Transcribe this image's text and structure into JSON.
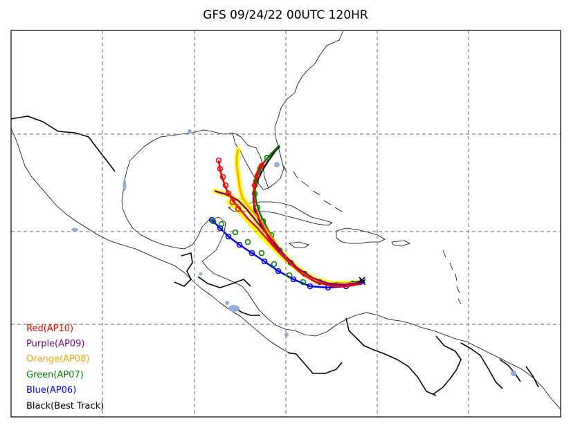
{
  "title": "GFS 09/24/22 00UTC 120HR",
  "colors": {
    "land_outline": "#000000",
    "lake": "#8fb0dc",
    "grid": "#808080",
    "halo": "#ffff00"
  },
  "legend": [
    {
      "label": "Red(AP10)",
      "color": "#ff0000"
    },
    {
      "label": "Purple(AP09)",
      "color": "#800080"
    },
    {
      "label": "Orange(AP08)",
      "color": "#ffa500"
    },
    {
      "label": "Green(AP07)",
      "color": "#008000"
    },
    {
      "label": "Blue(AP06)",
      "color": "#0000ff"
    },
    {
      "label": "Black(Best Track)",
      "color": "#000000"
    }
  ],
  "tracks": {
    "start_marker": "x",
    "point_marker": "open-circle",
    "halo_color": "#ffff00"
  }
}
